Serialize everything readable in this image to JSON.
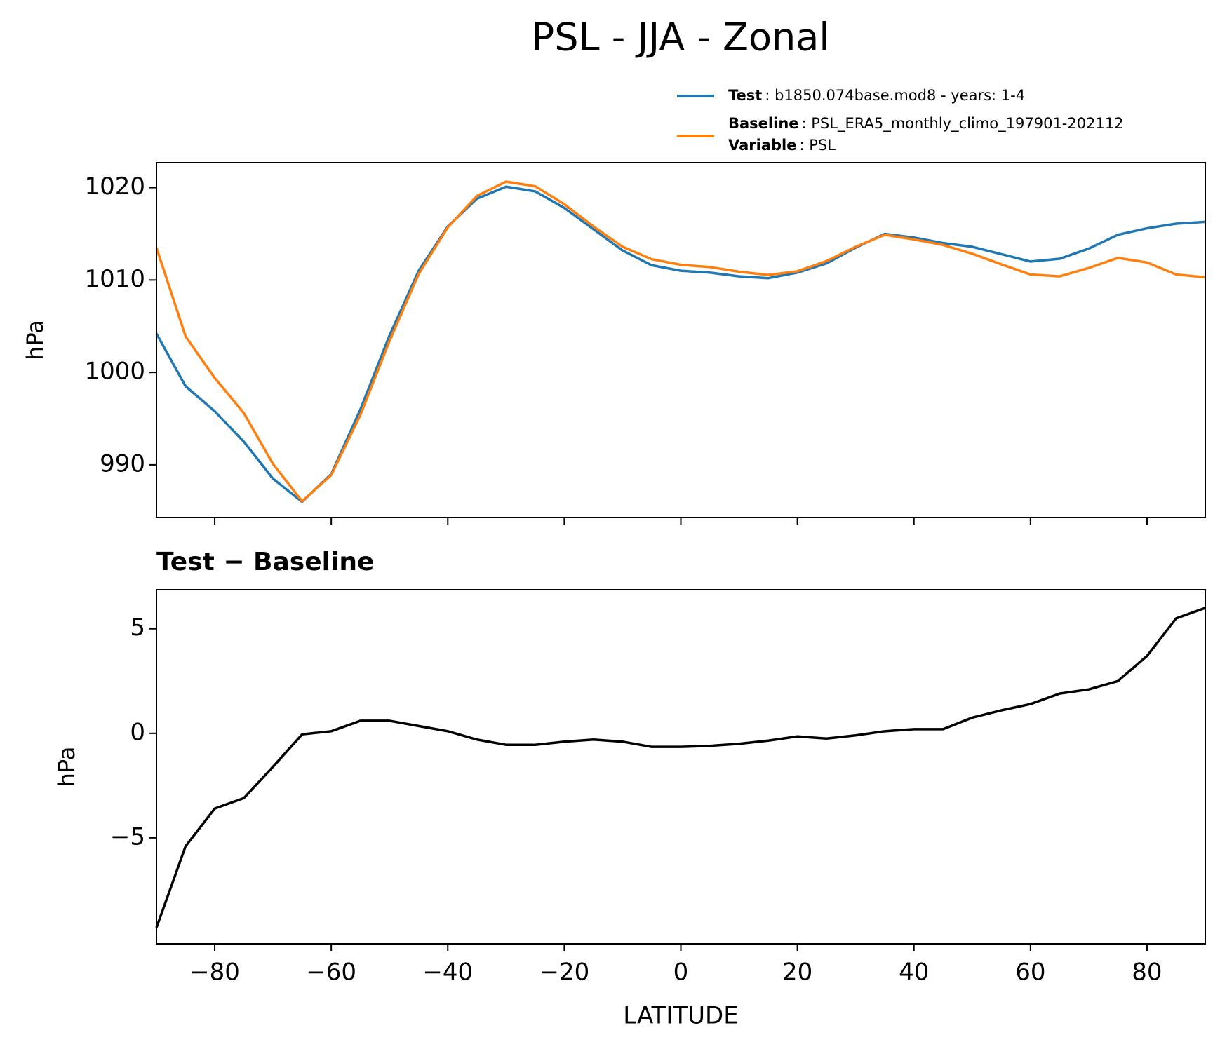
{
  "title": "PSL - JJA - Zonal",
  "chart_data": [
    {
      "type": "line",
      "ylabel": "hPa",
      "x": [
        -90,
        -85,
        -80,
        -75,
        -70,
        -65,
        -60,
        -55,
        -50,
        -45,
        -40,
        -35,
        -30,
        -25,
        -20,
        -15,
        -10,
        -5,
        0,
        5,
        10,
        15,
        20,
        25,
        30,
        35,
        40,
        45,
        50,
        55,
        60,
        65,
        70,
        75,
        80,
        85,
        90
      ],
      "series": [
        {
          "name": "Test",
          "info": ": b1850.074base.mod8 - years: 1-4",
          "color": "#1f77b4",
          "values": [
            1004.2,
            998.5,
            995.8,
            992.5,
            988.5,
            986.0,
            989.0,
            996,
            1004,
            1011,
            1015.8,
            1018.8,
            1020.1,
            1019.6,
            1017.8,
            1015.5,
            1013.2,
            1011.6,
            1011.0,
            1010.8,
            1010.4,
            1010.2,
            1010.8,
            1011.8,
            1013.5,
            1015.0,
            1014.6,
            1014.0,
            1013.6,
            1012.8,
            1012.0,
            1012.3,
            1013.4,
            1014.9,
            1015.6,
            1016.1,
            1016.3
          ]
        },
        {
          "name": "Baseline",
          "info": ": PSL_ERA5_monthly_climo_197901-202112",
          "color": "#ff7f0e",
          "values": [
            1013.5,
            1003.9,
            999.4,
            995.6,
            990.1,
            986.05,
            988.9,
            995.4,
            1003.4,
            1010.65,
            1015.7,
            1019.1,
            1020.65,
            1020.15,
            1018.2,
            1015.8,
            1013.6,
            1012.25,
            1011.65,
            1011.4,
            1010.9,
            1010.55,
            1010.95,
            1012.05,
            1013.6,
            1014.9,
            1014.4,
            1013.8,
            1012.85,
            1011.7,
            1010.6,
            1010.4,
            1011.3,
            1012.4,
            1011.9,
            1010.6,
            1010.3
          ]
        }
      ],
      "legend_extra": {
        "name": "Variable",
        "info": ": PSL"
      },
      "xlim": [
        -90,
        90
      ],
      "xticks": [
        -80,
        -60,
        -40,
        -20,
        0,
        20,
        40,
        60,
        80
      ],
      "ylim": [
        984.3,
        1022.7
      ],
      "yticks": [
        990,
        1000,
        1010,
        1020
      ]
    },
    {
      "type": "line",
      "title": "Test − Baseline",
      "ylabel": "hPa",
      "xlabel": "LATITUDE",
      "x": [
        -90,
        -85,
        -80,
        -75,
        -70,
        -65,
        -60,
        -55,
        -50,
        -45,
        -40,
        -35,
        -30,
        -25,
        -20,
        -15,
        -10,
        -5,
        0,
        5,
        10,
        15,
        20,
        25,
        30,
        35,
        40,
        45,
        50,
        55,
        60,
        65,
        70,
        75,
        80,
        85,
        90
      ],
      "series": [
        {
          "color": "#000000",
          "values": [
            -9.3,
            -5.4,
            -3.6,
            -3.1,
            -1.6,
            -0.05,
            0.1,
            0.6,
            0.6,
            0.35,
            0.1,
            -0.3,
            -0.55,
            -0.55,
            -0.4,
            -0.3,
            -0.4,
            -0.65,
            -0.65,
            -0.6,
            -0.5,
            -0.35,
            -0.15,
            -0.25,
            -0.1,
            0.1,
            0.2,
            0.2,
            0.75,
            1.1,
            1.4,
            1.9,
            2.1,
            2.5,
            3.7,
            5.5,
            6.0
          ]
        }
      ],
      "xlim": [
        -90,
        90
      ],
      "xticks": [
        {
          "value": -80,
          "label": "−80"
        },
        {
          "value": -60,
          "label": "−60"
        },
        {
          "value": -40,
          "label": "−40"
        },
        {
          "value": -20,
          "label": "−20"
        },
        0,
        20,
        40,
        60,
        80
      ],
      "ylim": [
        -10.07,
        6.87
      ],
      "yticks": [
        {
          "value": -5,
          "label": "−5"
        },
        0,
        5
      ]
    }
  ]
}
